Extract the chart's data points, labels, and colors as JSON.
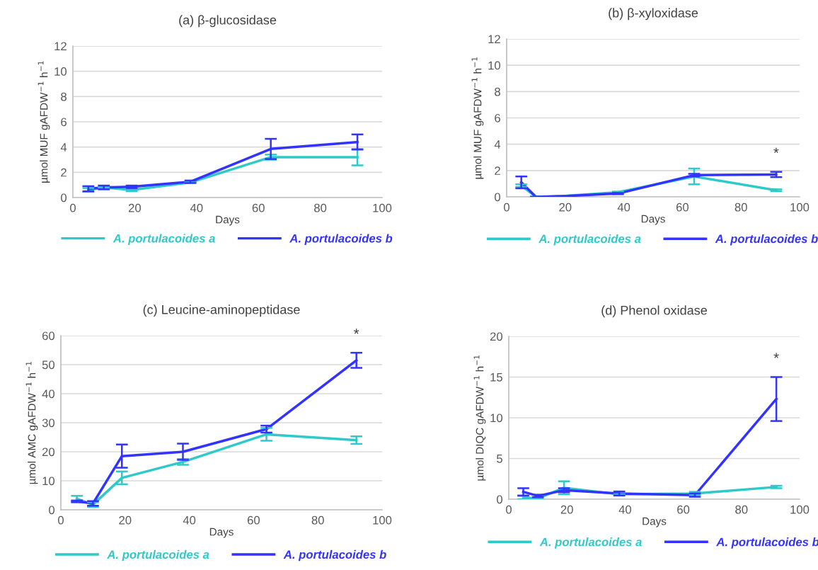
{
  "chart_data": [
    {
      "type": "line",
      "title": "(a) β-glucosidase",
      "xlabel": "Days",
      "ylabel": "µmol MUF gAFDW$^{−1}$ h$^{−1}$",
      "xlim": [
        0,
        100
      ],
      "xticks": [
        0,
        20,
        40,
        60,
        80,
        100
      ],
      "ylim": [
        0,
        12
      ],
      "yticks": [
        0,
        2,
        4,
        6,
        8,
        10,
        12
      ],
      "grid": "y",
      "legend": "bottom",
      "marker": "none",
      "line_style": "solid",
      "series": [
        {
          "name": "A. portulacoides a",
          "color": "#2ec9c9",
          "x": [
            5,
            10,
            19,
            38,
            64,
            92
          ],
          "values": [
            0.6,
            0.8,
            0.6,
            1.2,
            3.2,
            3.2
          ],
          "errors": [
            0.15,
            null,
            0.1,
            null,
            0.2,
            0.65
          ]
        },
        {
          "name": "A. portulacoides b",
          "color": "#3333ff",
          "x": [
            5,
            10,
            19,
            38,
            64,
            92
          ],
          "values": [
            0.7,
            0.8,
            0.85,
            1.25,
            3.85,
            4.4
          ],
          "errors": [
            0.2,
            0.15,
            0.1,
            0.1,
            0.8,
            0.6
          ]
        }
      ]
    },
    {
      "type": "line",
      "title": "(b) β-xyloxidase",
      "xlabel": "Days",
      "ylabel": "µmol MUF gAFDW$^{−1}$ h$^{−1}$",
      "xlim": [
        0,
        100
      ],
      "xticks": [
        0,
        20,
        40,
        60,
        80,
        100
      ],
      "ylim": [
        0,
        12
      ],
      "yticks": [
        0,
        2,
        4,
        6,
        8,
        10,
        12
      ],
      "grid": "y",
      "legend": "bottom",
      "marker": "none",
      "line_style": "solid",
      "annotations": [
        "*"
      ],
      "series": [
        {
          "name": "A. portulacoides a",
          "color": "#2ec9c9",
          "x": [
            5,
            10,
            19,
            38,
            64,
            92
          ],
          "values": [
            0.85,
            0,
            0.05,
            0.35,
            1.55,
            0.5
          ],
          "errors": [
            0.1,
            0,
            0,
            0.05,
            0.6,
            0.07
          ]
        },
        {
          "name": "A. portulacoides b",
          "color": "#3333ff",
          "x": [
            5,
            10,
            19,
            38,
            64,
            92
          ],
          "values": [
            1.1,
            0,
            0.05,
            0.25,
            1.65,
            1.7
          ],
          "errors": [
            0.45,
            0,
            0,
            0.05,
            0.1,
            0.2
          ]
        }
      ]
    },
    {
      "type": "line",
      "title": "(c) Leucine-aminopeptidase",
      "xlabel": "Days",
      "ylabel": "µmol AMC gAFDW$^{−1}$ h$^{−1}$",
      "xlim": [
        0,
        100
      ],
      "xticks": [
        0,
        20,
        40,
        60,
        80,
        100
      ],
      "ylim": [
        0,
        60
      ],
      "yticks": [
        0,
        10,
        20,
        30,
        40,
        50,
        60
      ],
      "grid": "y",
      "legend": "bottom",
      "marker": "none",
      "line_style": "solid",
      "annotations": [
        "*"
      ],
      "series": [
        {
          "name": "A. portulacoides a",
          "color": "#2ec9c9",
          "x": [
            5,
            10,
            19,
            38,
            64,
            92
          ],
          "values": [
            3.8,
            1.8,
            11,
            16.5,
            26,
            24
          ],
          "errors": [
            1,
            0.8,
            2.2,
            1,
            2.2,
            1.3
          ]
        },
        {
          "name": "A. portulacoides b",
          "color": "#3333ff",
          "x": [
            5,
            10,
            19,
            38,
            64,
            92
          ],
          "values": [
            2.9,
            2.2,
            18.5,
            20,
            27.8,
            51.5
          ],
          "errors": [
            0.3,
            0.8,
            4,
            2.8,
            1.2,
            2.6
          ]
        }
      ]
    },
    {
      "type": "line",
      "title": "(d) Phenol oxidase",
      "xlabel": "Days",
      "ylabel": "µmol DIQC gAFDW$^{−1}$ h$^{−1}$",
      "xlim": [
        0,
        100
      ],
      "xticks": [
        0,
        20,
        40,
        60,
        80,
        100
      ],
      "ylim": [
        0,
        20
      ],
      "yticks": [
        0,
        5,
        10,
        15,
        20
      ],
      "grid": "y",
      "legend": "bottom",
      "marker": "none",
      "line_style": "solid",
      "annotations": [
        "*"
      ],
      "series": [
        {
          "name": "A. portulacoides a",
          "color": "#2ec9c9",
          "x": [
            5,
            10,
            19,
            38,
            64,
            92
          ],
          "values": [
            0.2,
            0.1,
            1.4,
            0.6,
            0.7,
            1.5
          ],
          "errors": [
            0.2,
            0.1,
            0.8,
            null,
            0.2,
            0.15
          ]
        },
        {
          "name": "A. portulacoides b",
          "color": "#3333ff",
          "x": [
            5,
            10,
            19,
            38,
            64,
            92
          ],
          "values": [
            0.9,
            0.4,
            1.1,
            0.7,
            0.5,
            12.3
          ],
          "errors": [
            0.45,
            0.15,
            0.25,
            0.25,
            0.2,
            2.7
          ]
        }
      ]
    }
  ]
}
